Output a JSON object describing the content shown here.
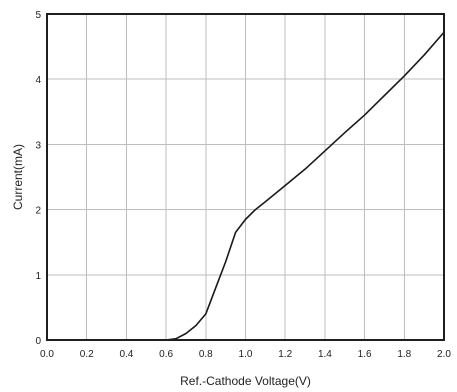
{
  "chart_data": {
    "type": "line",
    "title": "",
    "xlabel": "Ref.-Cathode Voltage(V)",
    "ylabel": "Current(mA)",
    "xlim": [
      0,
      2.0
    ],
    "ylim": [
      0,
      5
    ],
    "x_ticks": [
      "0.0",
      "0.2",
      "0.4",
      "0.6",
      "0.8",
      "1.0",
      "1.2",
      "1.4",
      "1.6",
      "1.8",
      "2.0"
    ],
    "y_ticks": [
      "0",
      "1",
      "2",
      "3",
      "4",
      "5"
    ],
    "grid": true,
    "legend": "none",
    "line_color": "#1a1a1a",
    "grid_color": "#bdbdbd",
    "series": [
      {
        "x": [
          0.6,
          0.65,
          0.7,
          0.75,
          0.8,
          0.85,
          0.9,
          0.95,
          1.0,
          1.05,
          1.1,
          1.2,
          1.3,
          1.4,
          1.5,
          1.6,
          1.7,
          1.8,
          1.9,
          2.0
        ],
        "y": [
          0.0,
          0.02,
          0.1,
          0.22,
          0.4,
          0.8,
          1.2,
          1.65,
          1.85,
          2.0,
          2.12,
          2.37,
          2.62,
          2.9,
          3.18,
          3.45,
          3.75,
          4.05,
          4.37,
          4.72
        ]
      }
    ]
  }
}
